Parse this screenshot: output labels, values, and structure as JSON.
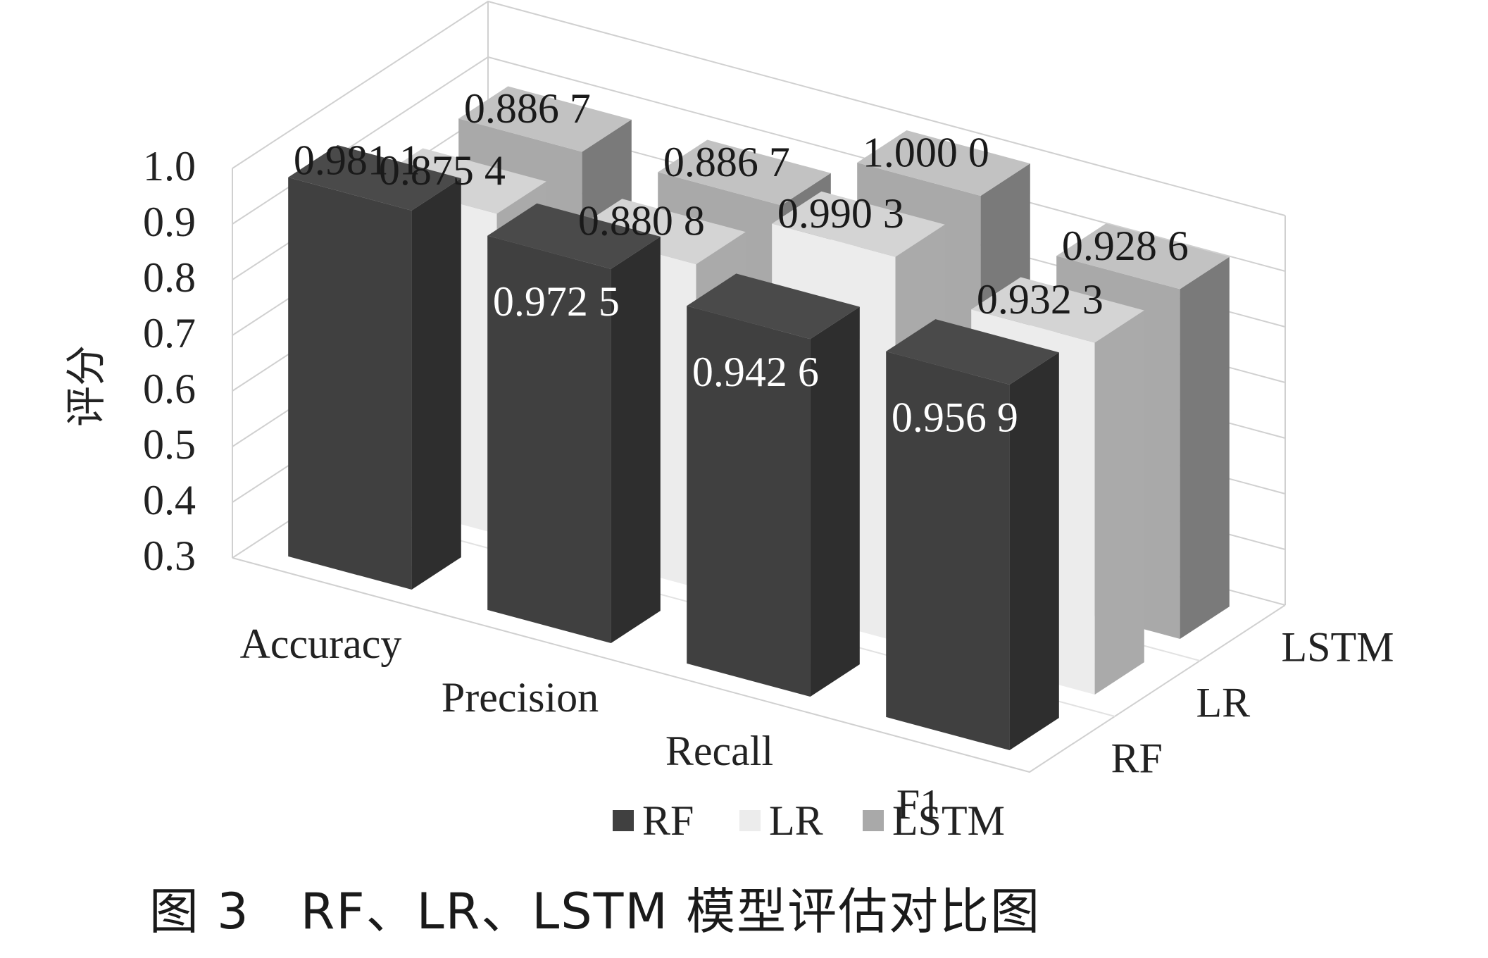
{
  "chart_data": {
    "type": "bar",
    "categories": [
      "Accuracy",
      "Precision",
      "Recall",
      "F1"
    ],
    "series": [
      {
        "name": "RF",
        "values": [
          0.9811,
          0.9725,
          0.9426,
          0.9569
        ],
        "labels": [
          "0.981 1",
          "0.972 5",
          "0.942 6",
          "0.956 9"
        ],
        "color": "#404040"
      },
      {
        "name": "LR",
        "values": [
          0.8754,
          0.8808,
          0.9903,
          0.9323
        ],
        "labels": [
          "0.875 4",
          "0.880 8",
          "0.990 3",
          "0.932 3"
        ],
        "color": "#ececec"
      },
      {
        "name": "LSTM",
        "values": [
          0.8867,
          0.8867,
          1.0,
          0.9286
        ],
        "labels": [
          "0.886 7",
          "0.886 7",
          "1.000 0",
          "0.928 6"
        ],
        "color": "#a9a9a9"
      }
    ],
    "ylabel": "评分",
    "yticks": [
      "0.3",
      "0.4",
      "0.5",
      "0.6",
      "0.7",
      "0.8",
      "0.9",
      "1.0"
    ],
    "ylim": [
      0.3,
      1.0
    ],
    "depth_labels": [
      "RF",
      "LR",
      "LSTM"
    ],
    "legend": [
      "RF",
      "LR",
      "LSTM"
    ],
    "legend_position": "bottom",
    "grid": true
  },
  "caption": "图 3　RF、LR、LSTM 模型评估对比图"
}
